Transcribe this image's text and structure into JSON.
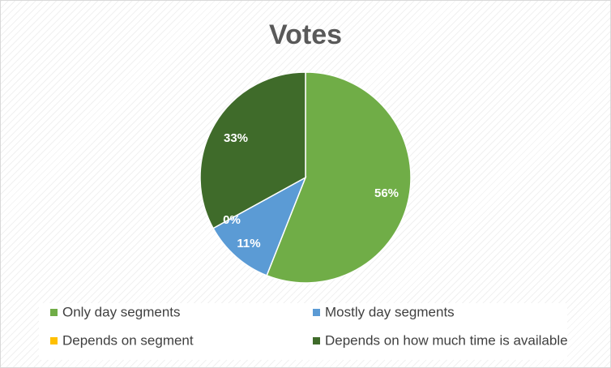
{
  "chart_data": {
    "type": "pie",
    "title": "Votes",
    "slices": [
      {
        "label": "Only day segments",
        "value": 56,
        "display": "56%",
        "color": "#70ad47"
      },
      {
        "label": "Mostly day segments",
        "value": 11,
        "display": "11%",
        "color": "#5b9bd5"
      },
      {
        "label": "Depends on segment",
        "value": 0,
        "display": "0%",
        "color": "#ffc000"
      },
      {
        "label": "Depends on how much time is available",
        "value": 33,
        "display": "33%",
        "color": "#3f6b2a"
      }
    ],
    "legend_position": "bottom"
  }
}
